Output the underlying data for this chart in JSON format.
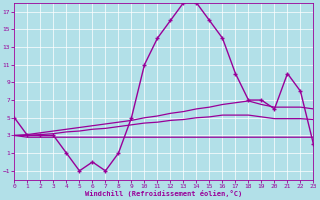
{
  "xlabel": "Windchill (Refroidissement éolien,°C)",
  "xlim": [
    0,
    23
  ],
  "ylim": [
    -2,
    18
  ],
  "yticks": [
    -1,
    1,
    3,
    5,
    7,
    9,
    11,
    13,
    15,
    17
  ],
  "xticks": [
    0,
    1,
    2,
    3,
    4,
    5,
    6,
    7,
    8,
    9,
    10,
    11,
    12,
    13,
    14,
    15,
    16,
    17,
    18,
    19,
    20,
    21,
    22,
    23
  ],
  "background_color": "#b2e0e8",
  "grid_color": "#ffffff",
  "line_color": "#990099",
  "series": {
    "main": [
      5,
      3,
      3,
      3,
      1,
      -1,
      0,
      -1,
      1,
      5,
      11,
      14,
      16,
      18,
      18,
      16,
      14,
      10,
      7,
      7,
      6,
      10,
      8,
      2
    ],
    "upper": [
      3.0,
      3.1,
      3.3,
      3.5,
      3.7,
      3.9,
      4.1,
      4.3,
      4.5,
      4.7,
      5.0,
      5.2,
      5.5,
      5.7,
      6.0,
      6.2,
      6.5,
      6.7,
      6.9,
      6.5,
      6.2,
      6.2,
      6.2,
      6.0
    ],
    "middle": [
      3.0,
      3.0,
      3.1,
      3.2,
      3.4,
      3.5,
      3.7,
      3.8,
      4.0,
      4.2,
      4.4,
      4.5,
      4.7,
      4.8,
      5.0,
      5.1,
      5.3,
      5.3,
      5.3,
      5.1,
      4.9,
      4.9,
      4.9,
      4.8
    ],
    "lower": [
      3.0,
      2.8,
      2.8,
      2.8,
      2.8,
      2.8,
      2.8,
      2.8,
      2.8,
      2.8,
      2.8,
      2.8,
      2.8,
      2.8,
      2.8,
      2.8,
      2.8,
      2.8,
      2.8,
      2.8,
      2.8,
      2.8,
      2.8,
      2.8
    ]
  }
}
